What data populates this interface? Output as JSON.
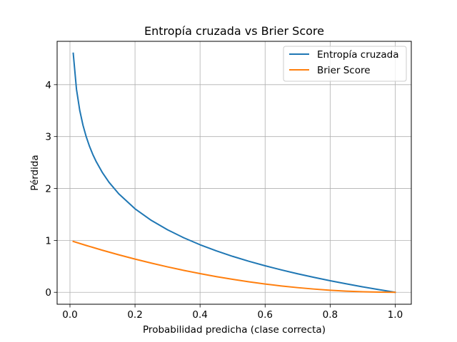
{
  "chart_data": {
    "type": "line",
    "title": "Entropía cruzada vs Brier Score",
    "xlabel": "Probabilidad predicha (clase correcta)",
    "ylabel": "Pérdida",
    "xlim": [
      -0.0395,
      1.0495
    ],
    "ylim": [
      -0.23,
      4.835
    ],
    "xticks": [
      0.0,
      0.2,
      0.4,
      0.6,
      0.8,
      1.0
    ],
    "xtick_labels": [
      "0.0",
      "0.2",
      "0.4",
      "0.6",
      "0.8",
      "1.0"
    ],
    "yticks": [
      0,
      1,
      2,
      3,
      4
    ],
    "ytick_labels": [
      "0",
      "1",
      "2",
      "3",
      "4"
    ],
    "grid": true,
    "legend_position": "top-right",
    "series": [
      {
        "name": "Entropía cruzada",
        "color": "#1f77b4",
        "x": [
          0.01,
          0.02,
          0.03,
          0.04,
          0.05,
          0.06,
          0.07,
          0.08,
          0.1,
          0.12,
          0.15,
          0.2,
          0.25,
          0.3,
          0.35,
          0.4,
          0.45,
          0.5,
          0.55,
          0.6,
          0.65,
          0.7,
          0.75,
          0.8,
          0.85,
          0.9,
          0.95,
          1.0
        ],
        "y": [
          4.605,
          3.912,
          3.507,
          3.219,
          2.996,
          2.813,
          2.659,
          2.526,
          2.303,
          2.12,
          1.897,
          1.609,
          1.386,
          1.204,
          1.05,
          0.916,
          0.799,
          0.693,
          0.598,
          0.511,
          0.431,
          0.357,
          0.288,
          0.223,
          0.163,
          0.105,
          0.051,
          0.0
        ]
      },
      {
        "name": "Brier Score",
        "color": "#ff7f0e",
        "x": [
          0.01,
          0.05,
          0.1,
          0.15,
          0.2,
          0.25,
          0.3,
          0.35,
          0.4,
          0.45,
          0.5,
          0.55,
          0.6,
          0.65,
          0.7,
          0.75,
          0.8,
          0.85,
          0.9,
          0.95,
          1.0
        ],
        "y": [
          0.98,
          0.9025,
          0.81,
          0.7225,
          0.64,
          0.5625,
          0.49,
          0.4225,
          0.36,
          0.3025,
          0.25,
          0.2025,
          0.16,
          0.1225,
          0.09,
          0.0625,
          0.04,
          0.0225,
          0.01,
          0.0025,
          0.0
        ]
      }
    ]
  }
}
